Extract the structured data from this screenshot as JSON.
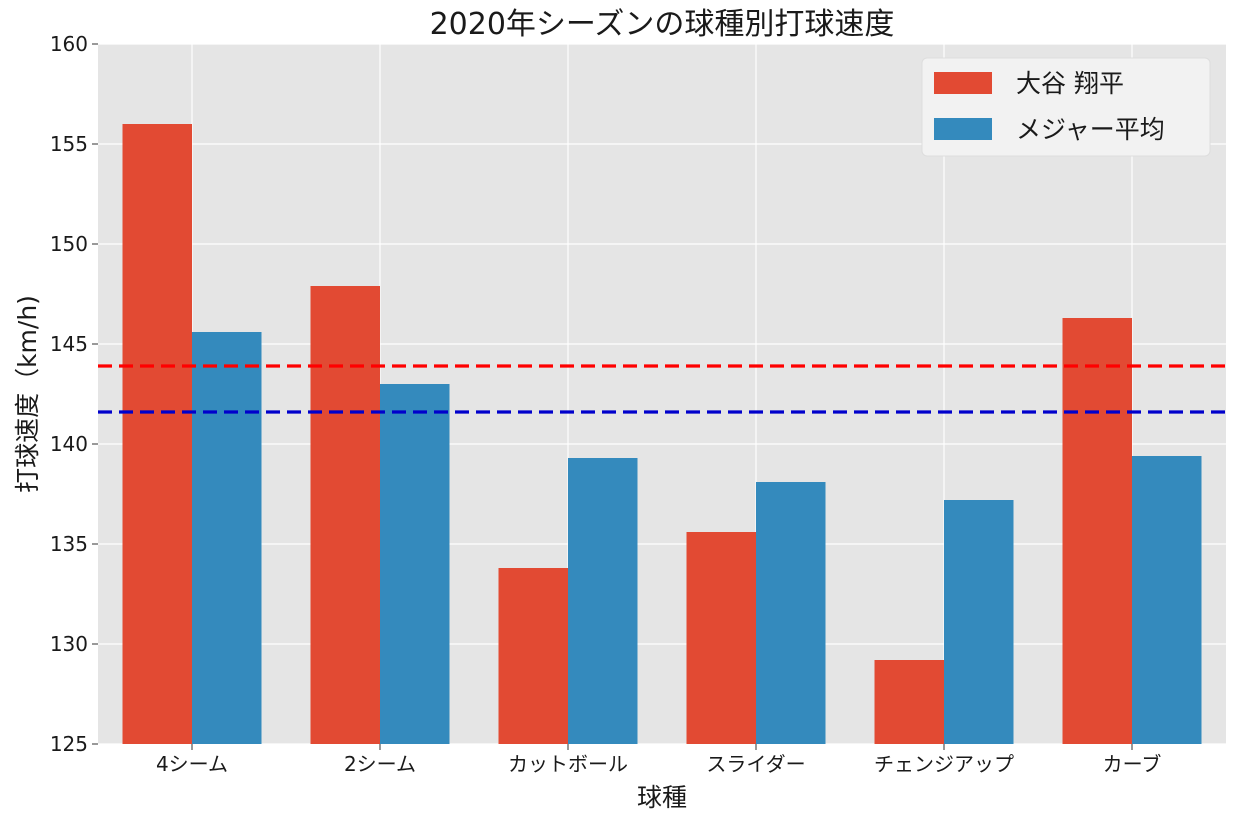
{
  "chart_data": {
    "type": "bar",
    "title": "2020年シーズンの球種別打球速度",
    "xlabel": "球種",
    "ylabel": "打球速度（km/h)",
    "categories": [
      "4シーム",
      "2シーム",
      "カットボール",
      "スライダー",
      "チェンジアップ",
      "カーブ"
    ],
    "series": [
      {
        "name": "大谷 翔平",
        "values": [
          156.0,
          147.9,
          133.8,
          135.6,
          129.2,
          146.3
        ],
        "color": "#E24A33"
      },
      {
        "name": "メジャー平均",
        "values": [
          145.6,
          143.0,
          139.3,
          138.1,
          137.2,
          139.4
        ],
        "color": "#348ABD"
      }
    ],
    "reference_lines": [
      {
        "value": 143.9,
        "color": "#FF0000",
        "style": "dashed"
      },
      {
        "value": 141.6,
        "color": "#0000CC",
        "style": "dashed"
      }
    ],
    "ylim": [
      125,
      160
    ],
    "yticks": [
      125,
      130,
      135,
      140,
      145,
      150,
      155,
      160
    ],
    "grid": true,
    "legend_position": "top-right",
    "background": "#E5E5E5"
  }
}
